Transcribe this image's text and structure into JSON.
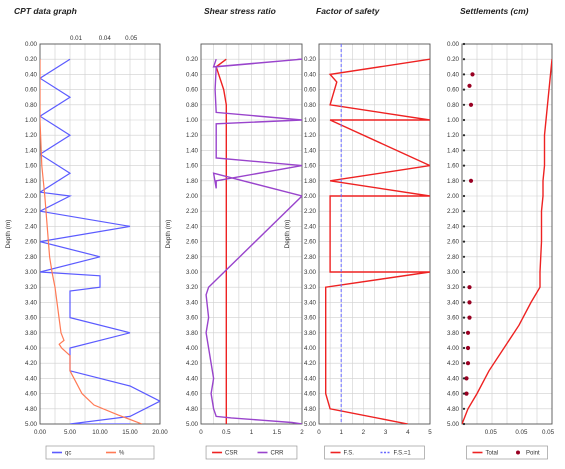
{
  "chart_data": [
    {
      "type": "line",
      "title": "CPT data graph",
      "ylabel": "Depth (m)",
      "ylim": [
        0.0,
        5.0
      ],
      "y_ticks": [
        "0.00",
        "0.20",
        "0.40",
        "0.60",
        "0.80",
        "1.00",
        "1.20",
        "1.40",
        "1.60",
        "1.80",
        "2.00",
        "2.20",
        "2.40",
        "2.60",
        "2.80",
        "3.00",
        "3.20",
        "3.40",
        "3.60",
        "3.80",
        "4.00",
        "4.20",
        "4.40",
        "4.60",
        "4.80",
        "5.00"
      ],
      "xlim": [
        0,
        20
      ],
      "x_ticks": [
        "0.00",
        "5.00",
        "10.00",
        "15.00",
        "20.00"
      ],
      "x2lim": [
        0,
        0.08
      ],
      "x2_ticks": [
        "0.01",
        "0.04",
        "0.05"
      ],
      "legend": "bottom",
      "series": [
        {
          "name": "qc",
          "legend_label": "qc",
          "axis": "bottom",
          "color": "#5b5bff",
          "x": [
            5,
            0,
            5,
            0,
            5,
            0,
            5,
            0,
            5,
            0,
            15,
            0,
            10,
            0,
            10,
            10,
            5,
            5,
            15,
            5,
            5,
            15,
            20,
            15,
            5,
            15
          ],
          "y": [
            0.2,
            0.45,
            0.7,
            0.95,
            1.2,
            1.45,
            1.7,
            1.95,
            2.0,
            2.2,
            2.4,
            2.6,
            2.8,
            3.0,
            3.05,
            3.2,
            3.25,
            3.6,
            3.8,
            4.0,
            4.3,
            4.5,
            4.7,
            4.9,
            5.0,
            5.0
          ]
        },
        {
          "name": "%",
          "legend_label": "%",
          "axis": "bottom",
          "color": "#ff7a55",
          "x": [
            0,
            0,
            0.3,
            0.8,
            1.2,
            1.6,
            2.0,
            2.5,
            3.0,
            3.5,
            4.0,
            3.2,
            3.6,
            5.0,
            5.0,
            5.0,
            6.0,
            7.0,
            9.0,
            13.0,
            17.0
          ],
          "y": [
            0.2,
            1.0,
            1.6,
            2.0,
            2.4,
            2.8,
            3.0,
            3.2,
            3.5,
            3.8,
            3.9,
            3.95,
            4.0,
            4.1,
            4.2,
            4.3,
            4.45,
            4.6,
            4.75,
            4.88,
            5.0
          ]
        }
      ]
    },
    {
      "type": "line",
      "title": "Shear stress ratio",
      "ylabel": "Depth (m)",
      "ylim": [
        0.0,
        5.0
      ],
      "y_ticks": [
        "0.20",
        "0.40",
        "0.60",
        "0.80",
        "1.00",
        "1.20",
        "1.40",
        "1.60",
        "1.80",
        "2.00",
        "2.20",
        "2.40",
        "2.60",
        "2.80",
        "3.00",
        "3.20",
        "3.40",
        "3.60",
        "3.80",
        "4.00",
        "4.20",
        "4.40",
        "4.60",
        "4.80",
        "5.00"
      ],
      "xlim": [
        0,
        2
      ],
      "x_ticks": [
        "0",
        "0.5",
        "1",
        "1.5",
        "2"
      ],
      "legend": "bottom",
      "series": [
        {
          "name": "CSR",
          "legend_label": "CSR",
          "color": "#ee2222",
          "x": [
            0.5,
            0.3,
            0.45,
            0.5,
            0.5,
            0.5,
            0.5,
            0.5,
            0.5,
            0.5,
            0.5,
            0.5,
            0.5,
            0.5,
            0.5,
            0.5,
            0.5
          ],
          "y": [
            0.2,
            0.3,
            0.6,
            0.8,
            1.0,
            1.5,
            1.8,
            2.2,
            2.6,
            3.0,
            3.4,
            3.8,
            4.2,
            4.6,
            4.8,
            4.9,
            5.0
          ]
        },
        {
          "name": "CRR",
          "legend_label": "CRR",
          "color": "#9944cc",
          "x": [
            0.3,
            0.25,
            2.0,
            0.3,
            0.28,
            0.3,
            2.0,
            0.3,
            0.3,
            2.0,
            0.3,
            0.3,
            0.25,
            2.0,
            0.15,
            0.1,
            0.15,
            0.1,
            0.15,
            0.2,
            0.25,
            0.2,
            0.25,
            0.3,
            0.6,
            1.2,
            1.8,
            2.0
          ],
          "y": [
            0.2,
            0.3,
            0.2,
            0.3,
            0.6,
            0.9,
            1.0,
            1.05,
            1.5,
            1.6,
            1.8,
            1.9,
            1.7,
            2.0,
            3.2,
            3.3,
            3.6,
            3.8,
            4.0,
            4.2,
            4.4,
            4.6,
            4.8,
            4.9,
            4.92,
            4.95,
            4.98,
            5.0
          ]
        }
      ]
    },
    {
      "type": "line",
      "title": "Factor of safety",
      "ylabel": "Depth (m)",
      "ylim": [
        0.0,
        5.0
      ],
      "y_ticks": [
        "0.20",
        "0.40",
        "0.60",
        "0.80",
        "1.00",
        "1.20",
        "1.40",
        "1.60",
        "1.80",
        "2.00",
        "2.20",
        "2.40",
        "2.60",
        "2.80",
        "3.00",
        "3.20",
        "3.40",
        "3.60",
        "3.80",
        "4.00",
        "4.20",
        "4.40",
        "4.60",
        "4.80",
        "5.00"
      ],
      "xlim": [
        0,
        5
      ],
      "x_ticks": [
        "0",
        "1",
        "2",
        "3",
        "4",
        "5"
      ],
      "legend": "bottom",
      "series": [
        {
          "name": "F.S.",
          "legend_label": "F.S.",
          "color": "#ee2222",
          "x": [
            5,
            0.5,
            0.8,
            0.6,
            0.5,
            5,
            0.5,
            5,
            0.5,
            5,
            0.5,
            0.5,
            0.5,
            5,
            0.3,
            0.3,
            0.3,
            0.3,
            0.3,
            0.3,
            0.3,
            0.3,
            0.5,
            4
          ],
          "y": [
            0.2,
            0.4,
            0.5,
            0.7,
            0.8,
            1.0,
            1.0,
            1.6,
            1.8,
            2.0,
            2.0,
            2.5,
            3.0,
            3.0,
            3.2,
            3.4,
            3.6,
            3.8,
            4.0,
            4.2,
            4.4,
            4.6,
            4.8,
            5.0
          ]
        },
        {
          "name": "F.S.=1",
          "legend_label": "F.S.=1",
          "color": "#6666ff",
          "dashed": true,
          "x": [
            1,
            1
          ],
          "y": [
            0.0,
            5.0
          ]
        }
      ]
    },
    {
      "type": "line",
      "title": "Settlements (cm)",
      "ylabel": "Depth (m)",
      "ylim": [
        0.0,
        5.0
      ],
      "y_ticks": [
        "0.00",
        "0.20",
        "0.40",
        "0.60",
        "0.80",
        "1.00",
        "1.20",
        "1.40",
        "1.60",
        "1.80",
        "2.00",
        "2.20",
        "2.40",
        "2.60",
        "2.80",
        "3.00",
        "3.20",
        "3.40",
        "3.60",
        "3.80",
        "4.00",
        "4.20",
        "4.40",
        "4.60",
        "4.80",
        "5.00"
      ],
      "xlim": [
        0,
        0.06
      ],
      "x_ticks": [
        "0.05",
        "0.05",
        "0.05"
      ],
      "legend": "bottom",
      "series": [
        {
          "name": "Total",
          "legend_label": "Total",
          "color": "#ee2222",
          "x": [
            0.06,
            0.059,
            0.058,
            0.057,
            0.056,
            0.055,
            0.055,
            0.055,
            0.054,
            0.054,
            0.053,
            0.053,
            0.052,
            0.052,
            0.046,
            0.038,
            0.028,
            0.018,
            0.01,
            0.004,
            0.0
          ],
          "y": [
            0.2,
            0.4,
            0.6,
            0.8,
            1.0,
            1.2,
            1.4,
            1.6,
            1.8,
            2.0,
            2.2,
            2.6,
            3.0,
            3.2,
            3.4,
            3.7,
            4.0,
            4.3,
            4.6,
            4.8,
            5.0
          ]
        },
        {
          "name": "Point",
          "legend_label": "Point",
          "color": "#990022",
          "marker": true,
          "x": [
            0.007,
            0.005,
            0.006,
            0.006,
            0.005,
            0.005,
            0.005,
            0.004,
            0.004,
            0.004,
            0.003,
            0.003
          ],
          "y": [
            0.4,
            0.55,
            0.8,
            1.8,
            3.2,
            3.4,
            3.6,
            3.8,
            4.0,
            4.2,
            4.4,
            4.6
          ]
        }
      ]
    }
  ]
}
